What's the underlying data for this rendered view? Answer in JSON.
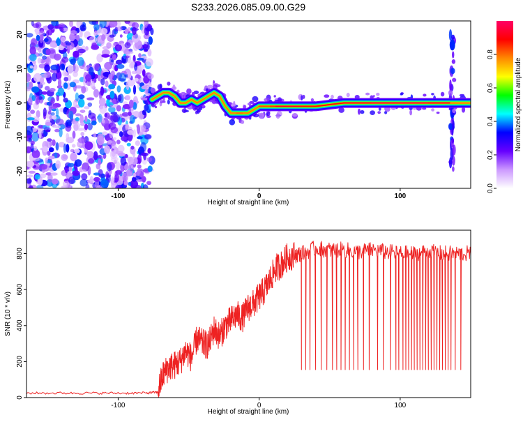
{
  "figure": {
    "title": "S233.2026.085.09.00.G29"
  },
  "chart_data": [
    {
      "type": "heatmap",
      "xlabel": "Height of straight line (km)",
      "ylabel": "Frequency (Hz)",
      "xlim": [
        -165,
        150
      ],
      "ylim": [
        -25,
        24
      ],
      "x_ticks": [
        -100,
        0,
        100
      ],
      "y_ticks": [
        -20,
        -10,
        0,
        10,
        20
      ],
      "colorbar": {
        "label": "Normalized spectral amplitude",
        "range": [
          0,
          1
        ],
        "ticks": [
          "0.0",
          "0.2",
          "0.4",
          "0.6",
          "0.8"
        ],
        "colors": [
          "#ffffff",
          "#cc99ff",
          "#6600ff",
          "#0000ff",
          "#00ffff",
          "#00ff00",
          "#ffff00",
          "#ff8800",
          "#ff0000",
          "#ff0066"
        ]
      },
      "noise_region_x": [
        -165,
        -76
      ],
      "ridge": {
        "x": [
          -76,
          -72,
          -68,
          -64,
          -60,
          -56,
          -52,
          -48,
          -44,
          -40,
          -36,
          -32,
          -28,
          -24,
          -20,
          -16,
          -12,
          -8,
          -4,
          0,
          4,
          8,
          12,
          20,
          30,
          40,
          60,
          80,
          100,
          120,
          135,
          140,
          150
        ],
        "y": [
          1,
          2,
          3,
          3,
          2,
          0,
          0,
          1,
          0,
          1,
          2,
          3,
          2,
          -1,
          -3,
          -3,
          -3,
          -3,
          -2,
          -1,
          -1,
          -1,
          -1,
          -1,
          -1,
          -1,
          0,
          0,
          0,
          0,
          0,
          0,
          0
        ],
        "amplitude": [
          0.5,
          0.55,
          0.7,
          0.6,
          0.55,
          0.5,
          0.5,
          0.6,
          0.55,
          0.6,
          0.65,
          0.7,
          0.6,
          0.6,
          0.75,
          0.8,
          0.8,
          0.75,
          0.7,
          0.8,
          0.85,
          0.8,
          0.9,
          0.95,
          0.9,
          0.85,
          0.9,
          0.95,
          0.95,
          0.95,
          0.9,
          0.6,
          0.8
        ]
      },
      "vertical_feature": {
        "x": 137,
        "y_range": [
          -22,
          20
        ],
        "peak_y": 17
      }
    },
    {
      "type": "line",
      "xlabel": "Height of straight line (km)",
      "ylabel": "SNR (10 * v/v)",
      "xlim": [
        -165,
        150
      ],
      "ylim": [
        0,
        930
      ],
      "x_ticks": [
        -100,
        0,
        100
      ],
      "y_ticks": [
        0,
        200,
        400,
        600,
        800
      ],
      "series": [
        {
          "color": "#ee2222",
          "x": [
            -165,
            -140,
            -120,
            -100,
            -80,
            -72,
            -68,
            -64,
            -60,
            -56,
            -52,
            -48,
            -44,
            -40,
            -36,
            -32,
            -28,
            -24,
            -20,
            -16,
            -12,
            -8,
            -4,
            0,
            4,
            8,
            12,
            16,
            20,
            25,
            30,
            40,
            50,
            60,
            70,
            80,
            90,
            100,
            110,
            120,
            130,
            140,
            150
          ],
          "y": [
            25,
            25,
            25,
            25,
            25,
            30,
            130,
            170,
            180,
            200,
            260,
            220,
            330,
            300,
            290,
            380,
            340,
            400,
            430,
            460,
            440,
            500,
            520,
            560,
            600,
            660,
            720,
            740,
            780,
            790,
            800,
            830,
            820,
            820,
            810,
            820,
            810,
            800,
            800,
            810,
            800,
            800,
            800
          ],
          "dropout_x": [
            30,
            33,
            36,
            40,
            44,
            48,
            52,
            55,
            58,
            61,
            64,
            67,
            70,
            74,
            78,
            84,
            88,
            93,
            97,
            99,
            102,
            104,
            106,
            108,
            110,
            112,
            114,
            116,
            118,
            120,
            122,
            124,
            126,
            128,
            130,
            132,
            134,
            136,
            139,
            143
          ],
          "dropout_y": 155
        }
      ]
    }
  ]
}
